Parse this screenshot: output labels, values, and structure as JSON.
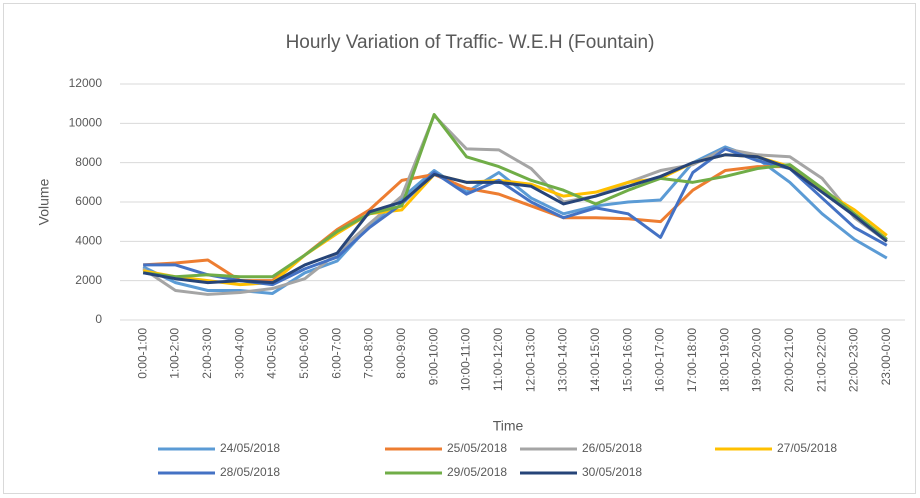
{
  "chart_data": {
    "type": "line",
    "title": "Hourly Variation of Traffic- W.E.H (Fountain)",
    "x_label": "Time",
    "y_label": "Volume",
    "categories": [
      "0:00-1:00",
      "1:00-2:00",
      "2:00-3:00",
      "3:00-4:00",
      "4:00-5:00",
      "5:00-6:00",
      "6:00-7:00",
      "7:00-8:00",
      "8:00-9:00",
      "9:00-10:00",
      "10:00-11:00",
      "11:00-12:00",
      "12:00-13:00",
      "13:00-14:00",
      "14:00-15:00",
      "15:00-16:00",
      "16:00-17:00",
      "17:00-18:00",
      "18:00-19:00",
      "19:00-20:00",
      "20:00-21:00",
      "21:00-22:00",
      "22:00-23:00",
      "23:00-0:00"
    ],
    "series": [
      {
        "name": "24/05/2018",
        "color": "#5b9bd5",
        "values": [
          2700,
          1900,
          1500,
          1500,
          1350,
          2400,
          3000,
          4800,
          6200,
          7600,
          6500,
          7500,
          6200,
          5400,
          5800,
          6000,
          6100,
          8000,
          8800,
          8200,
          7000,
          5400,
          4100,
          3150
        ]
      },
      {
        "name": "25/05/2018",
        "color": "#ed7d31",
        "values": [
          2800,
          2900,
          3050,
          2000,
          2000,
          3300,
          4600,
          5600,
          7100,
          7400,
          6700,
          6400,
          5800,
          5200,
          5200,
          5150,
          5000,
          6600,
          7600,
          7800,
          7800,
          6600,
          5300,
          4100
        ]
      },
      {
        "name": "26/05/2018",
        "color": "#a5a5a5",
        "values": [
          2600,
          1500,
          1300,
          1400,
          1600,
          2100,
          3400,
          4900,
          6300,
          10400,
          8700,
          8650,
          7700,
          6000,
          6300,
          7000,
          7600,
          7900,
          8700,
          8400,
          8300,
          7200,
          5200,
          4000
        ]
      },
      {
        "name": "27/05/2018",
        "color": "#ffc000",
        "values": [
          2500,
          2200,
          2000,
          1800,
          1900,
          3300,
          4400,
          5400,
          5600,
          7400,
          7000,
          7100,
          6900,
          6300,
          6500,
          7000,
          7200,
          8000,
          8400,
          8300,
          7800,
          6600,
          5600,
          4300
        ]
      },
      {
        "name": "28/05/2018",
        "color": "#4472c4",
        "values": [
          2800,
          2800,
          2300,
          2000,
          1800,
          2600,
          3200,
          4700,
          5900,
          7500,
          6400,
          7100,
          6000,
          5200,
          5700,
          5400,
          4200,
          7500,
          8700,
          8100,
          7700,
          6200,
          4700,
          3800
        ]
      },
      {
        "name": "29/05/2018",
        "color": "#70ad47",
        "values": [
          2400,
          2200,
          2300,
          2200,
          2200,
          3300,
          4500,
          5400,
          5800,
          10450,
          8300,
          7800,
          7100,
          6600,
          5900,
          6600,
          7200,
          7000,
          7300,
          7700,
          7900,
          6700,
          5400,
          4100
        ]
      },
      {
        "name": "30/05/2018",
        "color": "#264478",
        "values": [
          2400,
          2100,
          1900,
          2000,
          1900,
          2800,
          3400,
          5500,
          6000,
          7400,
          7000,
          7000,
          6800,
          5900,
          6300,
          6800,
          7300,
          8000,
          8400,
          8300,
          7700,
          6500,
          5300,
          4000
        ]
      }
    ],
    "ylim": [
      0,
      12000
    ],
    "yticks": [
      0,
      2000,
      4000,
      6000,
      8000,
      10000,
      12000
    ],
    "grid": true,
    "legend": "bottom"
  }
}
